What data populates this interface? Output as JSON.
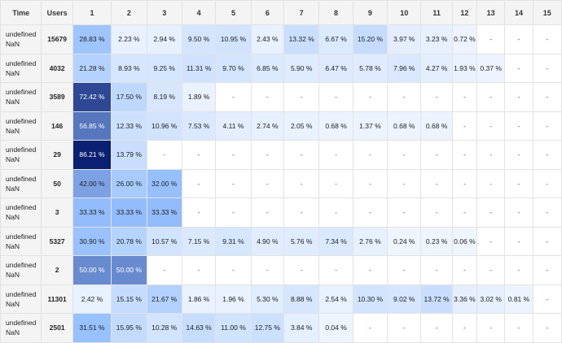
{
  "table": {
    "headers": [
      "Time",
      "Users",
      "1",
      "2",
      "3",
      "4",
      "5",
      "6",
      "7",
      "8",
      "9",
      "10",
      "11",
      "12",
      "13",
      "14",
      "15"
    ],
    "rows": [
      {
        "time_line1": "undefined",
        "time_line2": "NaN",
        "users": "15679",
        "cells": [
          "28.83 %",
          "2.23 %",
          "2.94 %",
          "9.50 %",
          "10.95 %",
          "2.43 %",
          "13.32 %",
          "6.67 %",
          "15.20 %",
          "3.97 %",
          "3.23 %",
          "0.72 %",
          "-",
          "-",
          "-"
        ],
        "values": [
          28.83,
          2.23,
          2.94,
          9.5,
          10.95,
          2.43,
          13.32,
          6.67,
          15.2,
          3.97,
          3.23,
          0.72,
          null,
          null,
          null
        ]
      },
      {
        "time_line1": "undefined",
        "time_line2": "NaN",
        "users": "4032",
        "cells": [
          "21.28 %",
          "8.93 %",
          "9.25 %",
          "11.31 %",
          "9.70 %",
          "6.85 %",
          "5.90 %",
          "6.47 %",
          "5.78 %",
          "7.96 %",
          "4.27 %",
          "1.93 %",
          "0.37 %",
          "-",
          "-"
        ],
        "values": [
          21.28,
          8.93,
          9.25,
          11.31,
          9.7,
          6.85,
          5.9,
          6.47,
          5.78,
          7.96,
          4.27,
          1.93,
          0.37,
          null,
          null
        ]
      },
      {
        "time_line1": "undefined",
        "time_line2": "NaN",
        "users": "3589",
        "cells": [
          "72.42 %",
          "17.50 %",
          "8.19 %",
          "1.89 %",
          "-",
          "-",
          "-",
          "-",
          "-",
          "-",
          "-",
          "-",
          "-",
          "-",
          "-"
        ],
        "values": [
          72.42,
          17.5,
          8.19,
          1.89,
          null,
          null,
          null,
          null,
          null,
          null,
          null,
          null,
          null,
          null,
          null
        ]
      },
      {
        "time_line1": "undefined",
        "time_line2": "NaN",
        "users": "146",
        "cells": [
          "56.85 %",
          "12.33 %",
          "10.96 %",
          "7.53 %",
          "4.11 %",
          "2.74 %",
          "2.05 %",
          "0.68 %",
          "1.37 %",
          "0.68 %",
          "0.68 %",
          "-",
          "-",
          "-",
          "-"
        ],
        "values": [
          56.85,
          12.33,
          10.96,
          7.53,
          4.11,
          2.74,
          2.05,
          0.68,
          1.37,
          0.68,
          0.68,
          null,
          null,
          null,
          null
        ]
      },
      {
        "time_line1": "undefined",
        "time_line2": "NaN",
        "users": "29",
        "cells": [
          "86.21 %",
          "13.79 %",
          "-",
          "-",
          "-",
          "-",
          "-",
          "-",
          "-",
          "-",
          "-",
          "-",
          "-",
          "-",
          "-"
        ],
        "values": [
          86.21,
          13.79,
          null,
          null,
          null,
          null,
          null,
          null,
          null,
          null,
          null,
          null,
          null,
          null,
          null
        ]
      },
      {
        "time_line1": "undefined",
        "time_line2": "NaN",
        "users": "50",
        "cells": [
          "42.00 %",
          "26.00 %",
          "32.00 %",
          "-",
          "-",
          "-",
          "-",
          "-",
          "-",
          "-",
          "-",
          "-",
          "-",
          "-",
          "-"
        ],
        "values": [
          42.0,
          26.0,
          32.0,
          null,
          null,
          null,
          null,
          null,
          null,
          null,
          null,
          null,
          null,
          null,
          null
        ]
      },
      {
        "time_line1": "undefined",
        "time_line2": "NaN",
        "users": "3",
        "cells": [
          "33.33 %",
          "33.33 %",
          "33.33 %",
          "-",
          "-",
          "-",
          "-",
          "-",
          "-",
          "-",
          "-",
          "-",
          "-",
          "-",
          "-"
        ],
        "values": [
          33.33,
          33.33,
          33.33,
          null,
          null,
          null,
          null,
          null,
          null,
          null,
          null,
          null,
          null,
          null,
          null
        ]
      },
      {
        "time_line1": "undefined",
        "time_line2": "NaN",
        "users": "5327",
        "cells": [
          "30.90 %",
          "20.78 %",
          "10.57 %",
          "7.15 %",
          "9.31 %",
          "4.90 %",
          "5.76 %",
          "7.34 %",
          "2.76 %",
          "0.24 %",
          "0.23 %",
          "0.06 %",
          "-",
          "-",
          "-"
        ],
        "values": [
          30.9,
          20.78,
          10.57,
          7.15,
          9.31,
          4.9,
          5.76,
          7.34,
          2.76,
          0.24,
          0.23,
          0.06,
          null,
          null,
          null
        ]
      },
      {
        "time_line1": "undefined",
        "time_line2": "NaN",
        "users": "2",
        "cells": [
          "50.00 %",
          "50.00 %",
          "-",
          "-",
          "-",
          "-",
          "-",
          "-",
          "-",
          "-",
          "-",
          "-",
          "-",
          "-",
          "-"
        ],
        "values": [
          50.0,
          50.0,
          null,
          null,
          null,
          null,
          null,
          null,
          null,
          null,
          null,
          null,
          null,
          null,
          null
        ]
      },
      {
        "time_line1": "undefined",
        "time_line2": "NaN",
        "users": "11301",
        "cells": [
          "2.42 %",
          "15.15 %",
          "21.67 %",
          "1.86 %",
          "1.96 %",
          "5.30 %",
          "8.88 %",
          "2.54 %",
          "10.30 %",
          "9.02 %",
          "13.72 %",
          "3.36 %",
          "3.02 %",
          "0.81 %",
          "-"
        ],
        "values": [
          2.42,
          15.15,
          21.67,
          1.86,
          1.96,
          5.3,
          8.88,
          2.54,
          10.3,
          9.02,
          13.72,
          3.36,
          3.02,
          0.81,
          null
        ]
      },
      {
        "time_line1": "undefined",
        "time_line2": "NaN",
        "users": "2501",
        "cells": [
          "31.51 %",
          "15.95 %",
          "10.28 %",
          "14.63 %",
          "11.00 %",
          "12.75 %",
          "3.84 %",
          "0.04 %",
          "-",
          "-",
          "-",
          "-",
          "-",
          "-",
          "-"
        ],
        "values": [
          31.51,
          15.95,
          10.28,
          14.63,
          11.0,
          12.75,
          3.84,
          0.04,
          null,
          null,
          null,
          null,
          null,
          null,
          null
        ]
      }
    ]
  }
}
